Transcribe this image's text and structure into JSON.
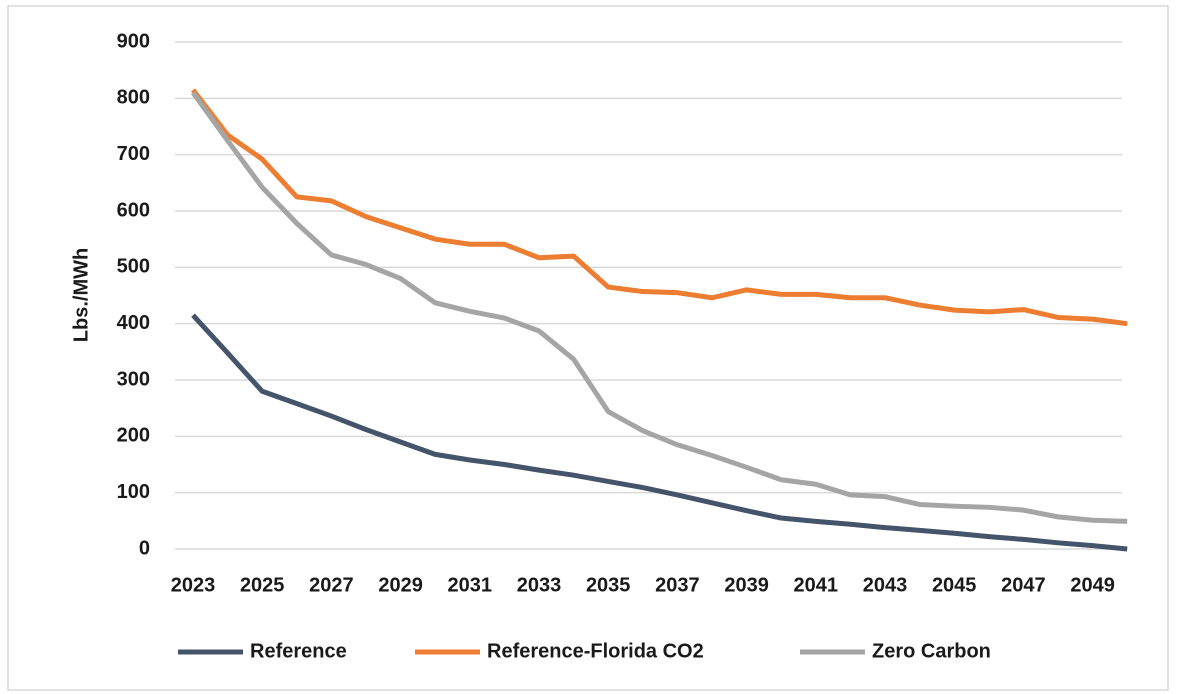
{
  "chart_data": {
    "type": "line",
    "y_label": "Lbs./MWh",
    "categories": [
      2023,
      null,
      2025,
      null,
      2027,
      null,
      2029,
      null,
      2031,
      null,
      2033,
      null,
      2035,
      null,
      2037,
      null,
      2039,
      null,
      2041,
      null,
      2043,
      null,
      2045,
      null,
      2047,
      null,
      2049,
      null
    ],
    "series": [
      {
        "name": "Reference",
        "color": "#44546a",
        "values": [
          415,
          348,
          280,
          258,
          236,
          212,
          190,
          168,
          158,
          150,
          140,
          131,
          120,
          109,
          96,
          82,
          68,
          55,
          49,
          44,
          38,
          33,
          28,
          22,
          17,
          11,
          6,
          0
        ]
      },
      {
        "name": "Reference-Florida CO2",
        "color": "#ed7d31",
        "values": [
          815,
          735,
          692,
          625,
          618,
          590,
          570,
          550,
          541,
          541,
          517,
          520,
          465,
          457,
          455,
          446,
          460,
          452,
          452,
          446,
          446,
          433,
          424,
          421,
          425,
          411,
          408,
          400
        ]
      },
      {
        "name": "Zero Carbon",
        "color": "#a5a5a5",
        "values": [
          810,
          725,
          642,
          578,
          522,
          505,
          480,
          437,
          422,
          410,
          387,
          337,
          244,
          210,
          185,
          166,
          145,
          123,
          115,
          96,
          93,
          79,
          76,
          74,
          69,
          57,
          51,
          49
        ]
      }
    ],
    "ylim": [
      0,
      900
    ],
    "yticks": [
      0,
      100,
      200,
      300,
      400,
      500,
      600,
      700,
      800,
      900
    ],
    "grid": true,
    "legend": "bottom"
  }
}
